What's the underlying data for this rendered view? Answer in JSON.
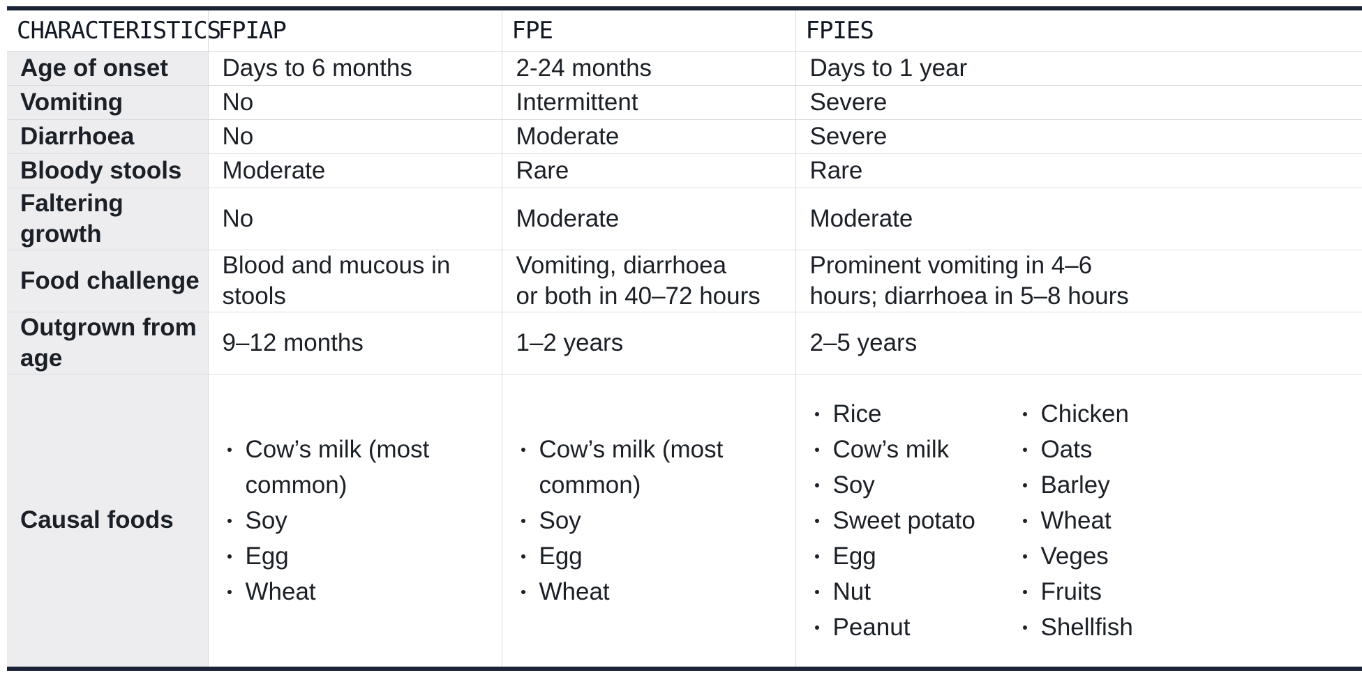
{
  "table": {
    "headers": [
      "CHARACTERISTICS",
      "FPIAP",
      "FPE",
      "FPIES"
    ],
    "rows": [
      {
        "label": "Age of onset",
        "fpiap": [
          "Days to 6 months"
        ],
        "fpe": [
          "2-24 months"
        ],
        "fpies": [
          "Days to 1 year"
        ]
      },
      {
        "label": "Vomiting",
        "fpiap": [
          "No"
        ],
        "fpe": [
          "Intermittent"
        ],
        "fpies": [
          "Severe"
        ]
      },
      {
        "label": "Diarrhoea",
        "fpiap": [
          "No"
        ],
        "fpe": [
          "Moderate"
        ],
        "fpies": [
          "Severe"
        ]
      },
      {
        "label": "Bloody stools",
        "fpiap": [
          "Moderate"
        ],
        "fpe": [
          "Rare"
        ],
        "fpies": [
          "Rare"
        ]
      },
      {
        "label": "Faltering growth",
        "fpiap": [
          "No"
        ],
        "fpe": [
          "Moderate"
        ],
        "fpies": [
          "Moderate"
        ]
      },
      {
        "label": "Food challenge",
        "fpiap": [
          "Blood and mucous in stools"
        ],
        "fpe": [
          "Vomiting, diarrhoea",
          "or both in 40–72 hours"
        ],
        "fpies": [
          "Prominent vomiting in 4–6",
          "hours; diarrhoea in 5–8 hours"
        ]
      },
      {
        "label": "Outgrown from age",
        "fpiap": [
          "9–12 months"
        ],
        "fpe": [
          "1–2 years"
        ],
        "fpies": [
          "2–5 years"
        ]
      }
    ],
    "causal_foods": {
      "label": "Causal foods",
      "fpiap": [
        "Cow’s milk (most common)",
        "Soy",
        "Egg",
        "Wheat"
      ],
      "fpe": [
        "Cow’s milk (most common)",
        "Soy",
        "Egg",
        "Wheat"
      ],
      "fpies_col1": [
        "Rice",
        "Cow’s milk",
        "Soy",
        "Sweet potato",
        "Egg",
        "Nut",
        "Peanut"
      ],
      "fpies_col2": [
        "Chicken",
        "Oats",
        "Barley",
        "Wheat",
        "Veges",
        "Fruits",
        "Shellfish"
      ]
    }
  },
  "colors": {
    "border_dark": "#1a2236",
    "row_header_bg": "#ededf0",
    "grid_line": "#d9dcdf",
    "text": "#1b1f26"
  }
}
